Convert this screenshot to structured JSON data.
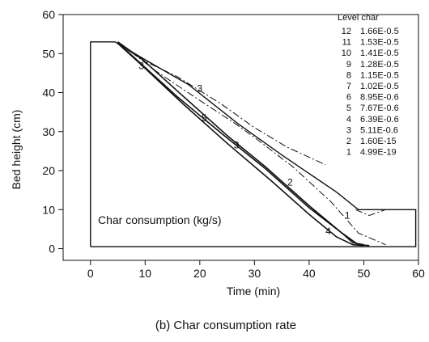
{
  "chart_data": {
    "type": "contour",
    "xlabel": "Time (min)",
    "ylabel": "Bed height (cm)",
    "xlim": [
      -5,
      60
    ],
    "ylim": [
      -3,
      60
    ],
    "xticks": [
      0,
      10,
      20,
      30,
      40,
      50,
      60
    ],
    "yticks": [
      0,
      10,
      20,
      30,
      40,
      50,
      60
    ],
    "annotation": "Char consumption (kg/s)",
    "caption": "(b) Char consumption rate",
    "legend": {
      "title": "Level char",
      "entries": [
        {
          "level": "12",
          "value": "1.66E-0.5"
        },
        {
          "level": "11",
          "value": "1.53E-0.5"
        },
        {
          "level": "10",
          "value": "1.41E-0.5"
        },
        {
          "level": "9",
          "value": "1.28E-0.5"
        },
        {
          "level": "8",
          "value": "1.15E-0.5"
        },
        {
          "level": "7",
          "value": "1.02E-0.5"
        },
        {
          "level": "6",
          "value": "8.95E-0.6"
        },
        {
          "level": "5",
          "value": "7.67E-0.6"
        },
        {
          "level": "4",
          "value": "6.39E-0.6"
        },
        {
          "level": "3",
          "value": "5.11E-0.6"
        },
        {
          "level": "2",
          "value": "1.60E-15"
        },
        {
          "level": "1",
          "value": "4.99E-19"
        }
      ]
    },
    "bed_outline": [
      [
        0,
        0.5
      ],
      [
        0,
        53
      ],
      [
        4.5,
        53
      ],
      [
        10.5,
        48
      ],
      [
        18,
        42
      ],
      [
        27,
        32
      ],
      [
        35,
        24
      ],
      [
        45,
        14.5
      ],
      [
        49,
        10
      ],
      [
        59.5,
        10
      ],
      [
        59.5,
        0.5
      ],
      [
        0,
        0.5
      ]
    ],
    "contours": [
      {
        "level": "3",
        "style": "dashdot",
        "points": [
          [
            4.5,
            53
          ],
          [
            10,
            48
          ],
          [
            16,
            44
          ],
          [
            24,
            37
          ],
          [
            30,
            31
          ],
          [
            36,
            26
          ],
          [
            43,
            21.5
          ]
        ],
        "label_at": [
          20,
          41
        ]
      },
      {
        "level": "2",
        "style": "dashdot",
        "points": [
          [
            5.5,
            52.5
          ],
          [
            12,
            45.5
          ],
          [
            20,
            38
          ],
          [
            26,
            32.5
          ],
          [
            30,
            28.5
          ],
          [
            37,
            21
          ],
          [
            44,
            12
          ],
          [
            49,
            4
          ],
          [
            54,
            1
          ]
        ],
        "label_at": [
          36.5,
          17
        ]
      },
      {
        "level": "3",
        "style": "solid",
        "points": [
          [
            5,
            53
          ],
          [
            9.5,
            48.5
          ],
          [
            17,
            39
          ],
          [
            25,
            29
          ],
          [
            32,
            21
          ],
          [
            40,
            11
          ],
          [
            46,
            4
          ],
          [
            49,
            1
          ],
          [
            51,
            0.8
          ]
        ],
        "label_at": [
          26.7,
          26.5
        ]
      },
      {
        "level": "5",
        "style": "solid",
        "points": [
          [
            5,
            52.8
          ],
          [
            9,
            47.7
          ],
          [
            16,
            38.8
          ],
          [
            24,
            29.5
          ],
          [
            32,
            20.5
          ],
          [
            40,
            10.5
          ],
          [
            46,
            4
          ],
          [
            48,
            1.5
          ],
          [
            50,
            1
          ]
        ],
        "label_at": [
          20.8,
          33.5
        ]
      },
      {
        "level": "4",
        "style": "solid",
        "points": [
          [
            5,
            52.6
          ],
          [
            9,
            47.5
          ],
          [
            17,
            37
          ],
          [
            25,
            27
          ],
          [
            33,
            17.5
          ],
          [
            40,
            8.8
          ],
          [
            45,
            3
          ],
          [
            48,
            1
          ],
          [
            50,
            0.8
          ]
        ],
        "label_at": [
          43.5,
          4.5
        ]
      },
      {
        "level": "1",
        "style": "dashdot",
        "points": [
          [
            48.5,
            10
          ],
          [
            51,
            8.5
          ],
          [
            53,
            9.5
          ],
          [
            54,
            10
          ]
        ],
        "label_at": [
          47,
          8.5
        ]
      }
    ],
    "extra_labels": [
      {
        "text": "3",
        "at": [
          9.3,
          46.8
        ]
      }
    ]
  }
}
